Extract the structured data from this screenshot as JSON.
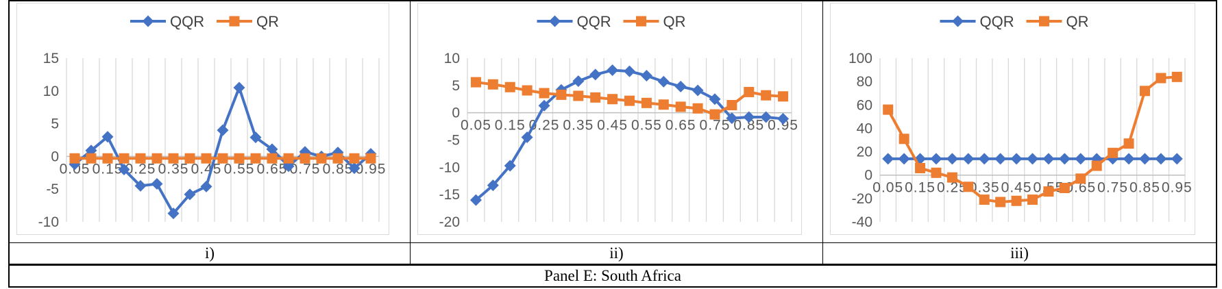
{
  "caption": "Panel E: South Africa",
  "panel_labels": [
    "i)",
    "ii)",
    "iii)"
  ],
  "colors": {
    "series_qqr": "#4472C4",
    "series_qr": "#ED7D31",
    "gridline": "#D9D9D9",
    "axis_line": "#BFBFBF",
    "tick_text": "#595959",
    "legend_text": "#404040",
    "table_border": "#000000"
  },
  "chart_data": [
    {
      "type": "line",
      "title": "",
      "xlabel": "",
      "ylabel": "",
      "grid": "vertical",
      "legend_position": "top-center",
      "x": [
        0.05,
        0.1,
        0.15,
        0.2,
        0.25,
        0.3,
        0.35,
        0.4,
        0.45,
        0.5,
        0.55,
        0.6,
        0.65,
        0.7,
        0.75,
        0.8,
        0.85,
        0.9,
        0.95
      ],
      "x_tick_labels": [
        "0.05",
        "0.15",
        "0.25",
        "0.35",
        "0.45",
        "0.55",
        "0.65",
        "0.75",
        "0.85",
        "0.95"
      ],
      "ylim": [
        -10,
        15
      ],
      "yticks": [
        15,
        10,
        5,
        0,
        -5,
        -10
      ],
      "series": [
        {
          "name": "QQR",
          "marker": "diamond",
          "color": "#4472C4",
          "values": [
            -1.2,
            0.9,
            3.0,
            -2.0,
            -4.5,
            -4.2,
            -8.7,
            -5.8,
            -4.6,
            4.0,
            10.5,
            2.9,
            1.1,
            -1.5,
            0.7,
            0.0,
            0.6,
            -1.8,
            0.4
          ]
        },
        {
          "name": "QR",
          "marker": "square",
          "color": "#ED7D31",
          "values": [
            -0.3,
            -0.3,
            -0.3,
            -0.3,
            -0.3,
            -0.3,
            -0.3,
            -0.3,
            -0.3,
            -0.3,
            -0.3,
            -0.3,
            -0.3,
            -0.3,
            -0.3,
            -0.3,
            -0.3,
            -0.3,
            -0.3
          ]
        }
      ]
    },
    {
      "type": "line",
      "title": "",
      "xlabel": "",
      "ylabel": "",
      "grid": "vertical",
      "legend_position": "top-center",
      "x": [
        0.05,
        0.1,
        0.15,
        0.2,
        0.25,
        0.3,
        0.35,
        0.4,
        0.45,
        0.5,
        0.55,
        0.6,
        0.65,
        0.7,
        0.75,
        0.8,
        0.85,
        0.9,
        0.95
      ],
      "x_tick_labels": [
        "0.05",
        "0.15",
        "0.25",
        "0.35",
        "0.45",
        "0.55",
        "0.65",
        "0.75",
        "0.85",
        "0.95"
      ],
      "ylim": [
        -20,
        10
      ],
      "yticks": [
        10,
        5,
        0,
        -5,
        -10,
        -15,
        -20
      ],
      "series": [
        {
          "name": "QQR",
          "marker": "diamond",
          "color": "#4472C4",
          "values": [
            -16.0,
            -13.3,
            -9.7,
            -4.5,
            1.3,
            4.2,
            5.8,
            7.0,
            7.8,
            7.6,
            6.8,
            5.7,
            4.8,
            4.1,
            2.5,
            -1.0,
            -0.8,
            -0.8,
            -1.1
          ]
        },
        {
          "name": "QR",
          "marker": "square",
          "color": "#ED7D31",
          "values": [
            5.6,
            5.2,
            4.7,
            4.1,
            3.6,
            3.3,
            3.1,
            2.8,
            2.5,
            2.2,
            1.8,
            1.5,
            1.1,
            0.8,
            -0.3,
            1.4,
            3.8,
            3.2,
            3.0
          ]
        }
      ]
    },
    {
      "type": "line",
      "title": "",
      "xlabel": "",
      "ylabel": "",
      "grid": "vertical",
      "legend_position": "top-center",
      "x": [
        0.05,
        0.1,
        0.15,
        0.2,
        0.25,
        0.3,
        0.35,
        0.4,
        0.45,
        0.5,
        0.55,
        0.6,
        0.65,
        0.7,
        0.75,
        0.8,
        0.85,
        0.9,
        0.95
      ],
      "x_tick_labels": [
        "0.05",
        "0.15",
        "0.25",
        "0.35",
        "0.45",
        "0.55",
        "0.65",
        "0.75",
        "0.85",
        "0.95"
      ],
      "ylim": [
        -40,
        100
      ],
      "yticks": [
        100,
        80,
        60,
        40,
        20,
        0,
        -20,
        -40
      ],
      "series": [
        {
          "name": "QQR",
          "marker": "diamond",
          "color": "#4472C4",
          "values": [
            14,
            14,
            14,
            14,
            14,
            14,
            14,
            14,
            14,
            14,
            14,
            14,
            14,
            14,
            14,
            14,
            14,
            14,
            14
          ]
        },
        {
          "name": "QR",
          "marker": "square",
          "color": "#ED7D31",
          "values": [
            56,
            31,
            6,
            2,
            -2,
            -10,
            -21,
            -23,
            -22,
            -21,
            -14,
            -11,
            -3,
            8,
            19,
            27,
            72,
            83,
            84
          ]
        }
      ]
    }
  ]
}
